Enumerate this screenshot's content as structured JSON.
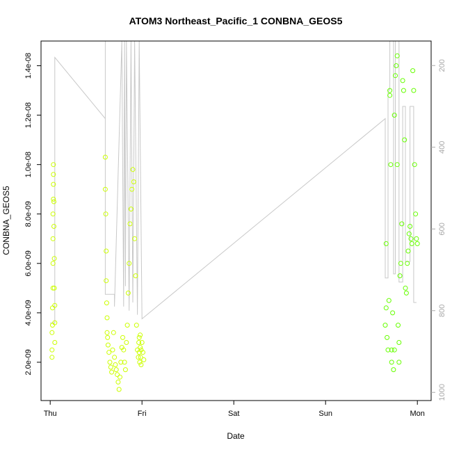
{
  "chart_data": {
    "type": "scatter",
    "title": "ATOM3 Northeast_Pacific_1 CONBNA_GEOS5",
    "xlabel": "Date",
    "ylabel": "CONBNA_GEOS5",
    "x_ticks": [
      "Thu",
      "Fri",
      "Sat",
      "Sun",
      "Mon"
    ],
    "x_tick_values": [
      0,
      1,
      2,
      3,
      4
    ],
    "xlim": [
      -0.1,
      4.15
    ],
    "ylim": [
      4.5e-10,
      1.5e-08
    ],
    "y_ticks": [
      "2.0e-09",
      "4.0e-09",
      "6.0e-09",
      "8.0e-09",
      "1.0e-08",
      "1.2e-08",
      "1.4e-08"
    ],
    "y_tick_values": [
      2e-09,
      4e-09,
      6e-09,
      8e-09,
      1e-08,
      1.2e-08,
      1.4e-08
    ],
    "y2_ticks": [
      "200",
      "400",
      "600",
      "800",
      "1000"
    ],
    "y2_tick_values": [
      200,
      400,
      600,
      800,
      1000
    ],
    "y2lim": [
      1020,
      140
    ],
    "y2_reversed": true,
    "colors": {
      "points_early": "#ccff00",
      "points_late": "#66ff00",
      "pressure_line": "#c8c8c8",
      "right_axis": "#a8a8a8"
    },
    "grid": false,
    "series": [
      {
        "kind": "points",
        "x": [
          0.02,
          0.02,
          0.02,
          0.025,
          0.025,
          0.03,
          0.03,
          0.03,
          0.03,
          0.035,
          0.035,
          0.035,
          0.035,
          0.04,
          0.04,
          0.045,
          0.045,
          0.05,
          0.05,
          0.05,
          0.6,
          0.6,
          0.605,
          0.61,
          0.61,
          0.615,
          0.62,
          0.62,
          0.625,
          0.63,
          0.64,
          0.65,
          0.66,
          0.67,
          0.68,
          0.69,
          0.7,
          0.71,
          0.72,
          0.73,
          0.74,
          0.75,
          0.76,
          0.77,
          0.78,
          0.79,
          0.8,
          0.81,
          0.82,
          0.83,
          0.84,
          0.85,
          0.86,
          0.87,
          0.88,
          0.89,
          0.9,
          0.91,
          0.92,
          0.93,
          0.94,
          0.95,
          0.96,
          0.965,
          0.97,
          0.97,
          0.975,
          0.98,
          0.98,
          0.985,
          0.99,
          0.99,
          1.0,
          1.01,
          1.02
        ],
        "y": [
          2.2e-09,
          2.5e-09,
          3.2e-09,
          3.5e-09,
          4.2e-09,
          5e-09,
          6e-09,
          7e-09,
          8e-09,
          8.6e-09,
          9.2e-09,
          9.6e-09,
          1e-08,
          8.5e-09,
          7.5e-09,
          6.2e-09,
          5e-09,
          4.3e-09,
          3.6e-09,
          2.8e-09,
          1.03e-08,
          9e-09,
          8e-09,
          6.5e-09,
          5.3e-09,
          4.4e-09,
          3.8e-09,
          3.2e-09,
          3e-09,
          2.7e-09,
          2.4e-09,
          2e-09,
          1.8e-09,
          1.6e-09,
          2.5e-09,
          3.2e-09,
          2.2e-09,
          1.9e-09,
          1.7e-09,
          1.5e-09,
          1.2e-09,
          9e-10,
          1.4e-09,
          2e-09,
          2.6e-09,
          3e-09,
          2.5e-09,
          2e-09,
          1.7e-09,
          2.8e-09,
          3.5e-09,
          4.8e-09,
          6e-09,
          7.6e-09,
          8.2e-09,
          9e-09,
          9.8e-09,
          9.3e-09,
          7e-09,
          5.5e-09,
          3.5e-09,
          2.5e-09,
          2.2e-09,
          2.8e-09,
          3e-09,
          2.4e-09,
          2e-09,
          2.6e-09,
          3.1e-09,
          2.2e-09,
          1.9e-09,
          2.5e-09,
          2.8e-09,
          2.4e-09,
          2.1e-09
        ]
      },
      {
        "kind": "points",
        "x": [
          3.65,
          3.66,
          3.66,
          3.67,
          3.68,
          3.69,
          3.7,
          3.7,
          3.71,
          3.72,
          3.72,
          3.73,
          3.74,
          3.75,
          3.75,
          3.76,
          3.77,
          3.78,
          3.78,
          3.79,
          3.8,
          3.8,
          3.81,
          3.82,
          3.83,
          3.84,
          3.85,
          3.86,
          3.87,
          3.88,
          3.89,
          3.9,
          3.91,
          3.92,
          3.93,
          3.94,
          3.95,
          3.96,
          3.97,
          3.98,
          3.99,
          4.0
        ],
        "y": [
          3.5e-09,
          4.2e-09,
          6.8e-09,
          3e-09,
          2.5e-09,
          4.5e-09,
          1.3e-08,
          1.28e-08,
          1e-08,
          2.5e-09,
          2e-09,
          4e-09,
          1.7e-09,
          2.5e-09,
          1.2e-08,
          1.36e-08,
          1.4e-08,
          1.44e-08,
          1e-08,
          3.5e-09,
          2.8e-09,
          2e-09,
          5.5e-09,
          6e-09,
          7.6e-09,
          1.34e-08,
          1.3e-08,
          1.1e-08,
          5e-09,
          4.8e-09,
          6e-09,
          6.5e-09,
          7.2e-09,
          7.5e-09,
          7e-09,
          6.8e-09,
          1.38e-08,
          1.3e-08,
          1e-08,
          8e-09,
          7e-09,
          6.8e-09
        ]
      }
    ],
    "pressure_line": {
      "x": [
        0.0,
        0.05,
        0.05,
        0.6,
        0.6,
        0.6,
        0.7,
        0.7,
        0.7,
        0.78,
        0.78,
        0.8,
        0.8,
        0.81,
        0.81,
        0.82,
        0.82,
        0.83,
        0.83,
        0.86,
        0.86,
        0.88,
        0.88,
        0.9,
        0.9,
        0.92,
        0.92,
        0.95,
        0.95,
        0.97,
        0.97,
        1.0,
        3.65,
        3.65,
        3.68,
        3.68,
        3.7,
        3.7,
        3.74,
        3.74,
        3.76,
        3.76,
        3.8,
        3.8,
        3.84,
        3.84,
        3.87,
        3.87,
        3.92,
        3.92,
        3.96,
        3.96,
        3.99
      ],
      "y": [
        830,
        830,
        180,
        330,
        140,
        760,
        760,
        790,
        790,
        140,
        140,
        790,
        790,
        140,
        140,
        740,
        740,
        140,
        140,
        800,
        800,
        140,
        140,
        780,
        780,
        140,
        140,
        810,
        810,
        140,
        140,
        820,
        330,
        720,
        720,
        260,
        260,
        140,
        140,
        710,
        710,
        140,
        140,
        730,
        730,
        300,
        300,
        680,
        680,
        300,
        300,
        780,
        780
      ]
    }
  }
}
